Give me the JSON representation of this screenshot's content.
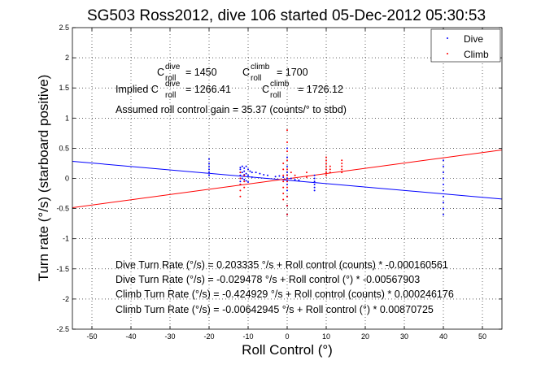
{
  "colors": {
    "dive": "#0000ff",
    "climb": "#ff0000",
    "axis": "#000000"
  },
  "title": "SG503 Ross2012, dive 106 started 05-Dec-2012 05:30:53",
  "chart_data": {
    "type": "scatter",
    "title": "SG503 Ross2012, dive 106 started 05-Dec-2012 05:30:53",
    "xlabel": "Roll Control (°)",
    "ylabel": "Turn rate (°/s) (starboard positive)",
    "xlim": [
      -55,
      55
    ],
    "ylim": [
      -2.5,
      2.5
    ],
    "xticks": [
      -50,
      -40,
      -30,
      -20,
      -10,
      0,
      10,
      20,
      30,
      40,
      50
    ],
    "yticks": [
      -2.5,
      -2,
      -1.5,
      -1,
      -0.5,
      0,
      0.5,
      1,
      1.5,
      2,
      2.5
    ],
    "grid": true,
    "legend_position": "top-right",
    "legend": [
      "Dive",
      "Climb"
    ],
    "series": [
      {
        "name": "Dive",
        "style": "points",
        "points": [
          [
            -20,
            0.32
          ],
          [
            -20,
            0.25
          ],
          [
            -20,
            0.2
          ],
          [
            -20,
            0.15
          ],
          [
            -20,
            0.1
          ],
          [
            -20,
            0.05
          ],
          [
            -12,
            0.18
          ],
          [
            -12,
            0.15
          ],
          [
            -12,
            0.1
          ],
          [
            -12,
            0.05
          ],
          [
            -12,
            0.0
          ],
          [
            -12,
            -0.05
          ],
          [
            -12,
            -0.1
          ],
          [
            -11.5,
            0.2
          ],
          [
            -11.5,
            0.1
          ],
          [
            -11.5,
            0.0
          ],
          [
            -11,
            0.17
          ],
          [
            -11,
            0.12
          ],
          [
            -11,
            0.06
          ],
          [
            -11,
            -0.02
          ],
          [
            -10.5,
            0.2
          ],
          [
            -10.5,
            0.08
          ],
          [
            -10.5,
            -0.04
          ],
          [
            -10,
            0.15
          ],
          [
            -10,
            0.05
          ],
          [
            -10,
            -0.06
          ],
          [
            -9.5,
            0.12
          ],
          [
            -9,
            0.1
          ],
          [
            -9,
            0.02
          ],
          [
            -8,
            0.1
          ],
          [
            -7,
            0.08
          ],
          [
            -6,
            0.06
          ],
          [
            -5,
            0.05
          ],
          [
            -3,
            0.03
          ],
          [
            -2,
            0.04
          ],
          [
            -1,
            0.02
          ],
          [
            0,
            0.5
          ],
          [
            0,
            0.35
          ],
          [
            0,
            0.2
          ],
          [
            0,
            0.1
          ],
          [
            0,
            0.05
          ],
          [
            0,
            0.0
          ],
          [
            0,
            -0.05
          ],
          [
            0,
            -0.1
          ],
          [
            0,
            -0.2
          ],
          [
            0,
            -0.3
          ],
          [
            0,
            -0.45
          ],
          [
            0,
            -0.6
          ],
          [
            1,
            0.0
          ],
          [
            2,
            -0.02
          ],
          [
            3,
            -0.03
          ],
          [
            7,
            0.05
          ],
          [
            7,
            0.0
          ],
          [
            7,
            -0.05
          ],
          [
            7,
            -0.1
          ],
          [
            7,
            -0.15
          ],
          [
            7,
            -0.2
          ],
          [
            40,
            0.3
          ],
          [
            40,
            0.2
          ],
          [
            40,
            0.1
          ],
          [
            40,
            0.0
          ],
          [
            40,
            -0.1
          ],
          [
            40,
            -0.2
          ],
          [
            40,
            -0.3
          ],
          [
            40,
            -0.4
          ],
          [
            40,
            -0.5
          ],
          [
            40,
            -0.6
          ]
        ]
      },
      {
        "name": "Climb",
        "style": "points",
        "points": [
          [
            -12,
            0.1
          ],
          [
            -12,
            0.0
          ],
          [
            -12,
            -0.1
          ],
          [
            -12,
            -0.2
          ],
          [
            -12,
            -0.3
          ],
          [
            -11,
            0.05
          ],
          [
            -11,
            -0.05
          ],
          [
            -11,
            -0.15
          ],
          [
            -1,
            0.25
          ],
          [
            -1,
            0.15
          ],
          [
            -1,
            0.05
          ],
          [
            -1,
            -0.05
          ],
          [
            -1,
            -0.15
          ],
          [
            -1,
            -0.25
          ],
          [
            -1,
            -0.35
          ],
          [
            0,
            0.8
          ],
          [
            0,
            0.6
          ],
          [
            0,
            0.45
          ],
          [
            0,
            0.3
          ],
          [
            0,
            0.15
          ],
          [
            0,
            0.05
          ],
          [
            0,
            -0.05
          ],
          [
            0,
            -0.15
          ],
          [
            0,
            -0.3
          ],
          [
            0,
            -0.45
          ],
          [
            0,
            -0.6
          ],
          [
            1,
            0.1
          ],
          [
            2,
            0.05
          ],
          [
            5,
            0.1
          ],
          [
            5,
            0.02
          ],
          [
            10,
            0.35
          ],
          [
            10,
            0.3
          ],
          [
            10,
            0.25
          ],
          [
            10,
            0.2
          ],
          [
            10,
            0.15
          ],
          [
            10,
            0.1
          ],
          [
            10,
            0.05
          ],
          [
            11,
            0.2
          ],
          [
            11,
            0.15
          ],
          [
            11,
            0.1
          ],
          [
            14,
            0.3
          ],
          [
            14,
            0.25
          ],
          [
            14,
            0.2
          ],
          [
            14,
            0.15
          ],
          [
            14,
            0.1
          ]
        ]
      }
    ],
    "fits": [
      {
        "series": "Dive",
        "intercept": -0.029478,
        "slope": -0.00567903
      },
      {
        "series": "Climb",
        "intercept": -0.00642945,
        "slope": 0.00870725
      }
    ]
  },
  "annotations": {
    "c_dive_prefix": "C",
    "c_dive_sup": "dive",
    "c_dive_sub": "roll",
    "c_dive_value": "= 1450",
    "c_climb_prefix": "C",
    "c_climb_sup": "climb",
    "c_climb_sub": "roll",
    "c_climb_value": "= 1700",
    "implied_prefix": "Implied C",
    "implied_dive_sup": "dive",
    "implied_dive_sub": "roll",
    "implied_dive_value": "= 1266.41",
    "implied_climb_prefix": "C",
    "implied_climb_sup": "climb",
    "implied_climb_sub": "roll",
    "implied_climb_value": "= 1726.12",
    "assumed_gain": "Assumed roll control gain = 35.37 (counts/° to stbd)",
    "fit_lines": [
      "Dive Turn Rate (°/s) = 0.203335 °/s + Roll control (counts) * -0.000160561",
      "Dive Turn Rate (°/s) = -0.029478 °/s + Roll control (°) * -0.00567903",
      "Climb Turn Rate (°/s) = -0.424929 °/s + Roll control (counts) * 0.000246176",
      "Climb Turn Rate (°/s) = -0.00642945 °/s + Roll control (°) * 0.00870725"
    ]
  }
}
